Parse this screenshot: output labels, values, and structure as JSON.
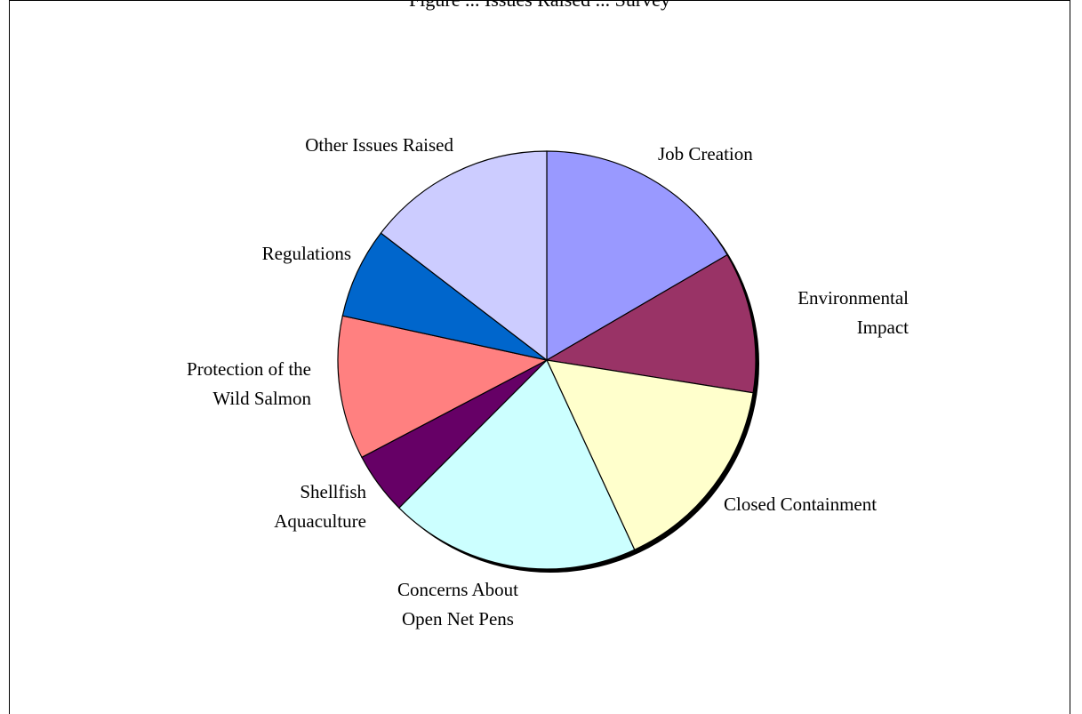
{
  "page": {
    "clipped_header": "Figure ... Issues Raised ... Survey"
  },
  "chart_data": {
    "type": "pie",
    "title": "",
    "slices": [
      {
        "label": "Job Creation",
        "value": 16.6,
        "color": "#9999ff"
      },
      {
        "label": "Environmental Impact",
        "value": 10.9,
        "color": "#993366"
      },
      {
        "label": "Closed Containment",
        "value": 15.6,
        "color": "#ffffcc"
      },
      {
        "label": "Concerns About Open Net Pens",
        "value": 19.4,
        "color": "#ccffff"
      },
      {
        "label": "Shellfish Aquaculture",
        "value": 4.8,
        "color": "#660066"
      },
      {
        "label": "Protection of the Wild Salmon",
        "value": 11.1,
        "color": "#ff8080"
      },
      {
        "label": "Regulations",
        "value": 7.0,
        "color": "#0066cc"
      },
      {
        "label": "Other Issues Raised",
        "value": 14.6,
        "color": "#ccccff"
      }
    ],
    "start_angle_deg": 0,
    "direction": "clockwise"
  }
}
